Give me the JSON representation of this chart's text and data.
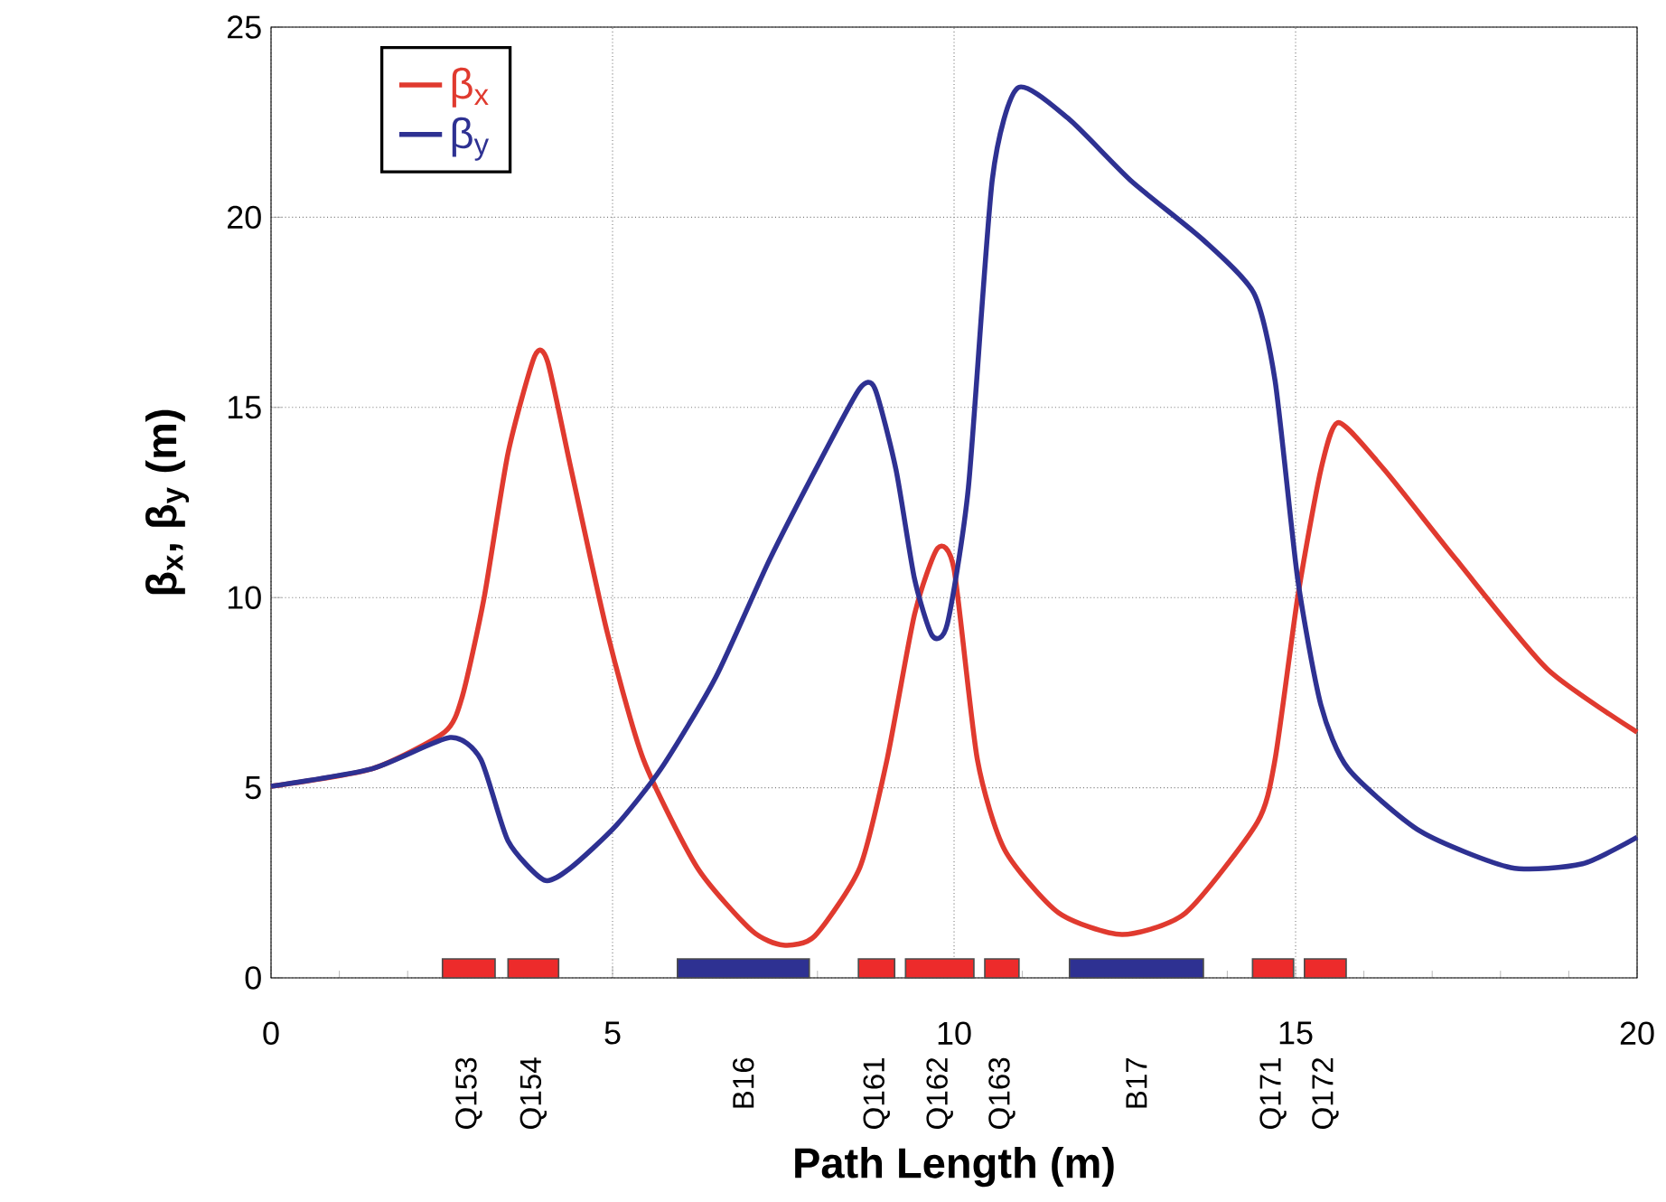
{
  "chart_data": {
    "type": "line",
    "xlabel": "Path Length (m)",
    "ylabel": "β$_{x}$, β$_{y}$ (m)",
    "xlim": [
      0,
      20
    ],
    "ylim": [
      0,
      25
    ],
    "xticks": [
      0,
      5,
      10,
      15,
      20
    ],
    "yticks": [
      0,
      5,
      10,
      15,
      20,
      25
    ],
    "grid": true,
    "legend": "top left",
    "line_style": "solid",
    "marker": "none",
    "series": [
      {
        "name": "β$_{x}$",
        "color": "#e03a2f",
        "x": [
          0,
          1.48,
          2.54,
          2.8,
          3.12,
          3.47,
          3.86,
          4.05,
          4.39,
          4.92,
          5.45,
          6.24,
          7.04,
          7.5,
          7.96,
          8.62,
          9.02,
          9.42,
          9.76,
          10.0,
          10.34,
          10.74,
          11.53,
          12.46,
          13.39,
          14.44,
          14.7,
          15.03,
          15.37,
          15.63,
          16.3,
          17.35,
          18.68,
          20
        ],
        "values": [
          5.04,
          5.5,
          6.46,
          7.4,
          10.0,
          13.8,
          16.35,
          16.2,
          13.4,
          9.1,
          5.75,
          2.9,
          1.24,
          0.86,
          1.1,
          2.9,
          5.75,
          9.55,
          11.3,
          10.74,
          5.75,
          3.37,
          1.71,
          1.14,
          1.71,
          4.09,
          5.75,
          10.0,
          13.36,
          14.6,
          13.36,
          11.0,
          8.13,
          6.46
        ]
      },
      {
        "name": "β$_{y}$",
        "color": "#2e3192",
        "x": [
          0,
          1.48,
          2.62,
          3.07,
          3.47,
          4.0,
          4.39,
          5.05,
          5.71,
          6.51,
          7.3,
          8.1,
          8.62,
          8.84,
          9.15,
          9.42,
          9.68,
          9.9,
          10.21,
          10.56,
          10.93,
          11.67,
          12.59,
          13.65,
          14.39,
          14.7,
          15.03,
          15.37,
          15.77,
          16.83,
          18.15,
          19.2,
          20
        ],
        "values": [
          5.04,
          5.5,
          6.32,
          5.75,
          3.6,
          2.57,
          2.9,
          4.0,
          5.5,
          7.9,
          11.0,
          13.8,
          15.5,
          15.5,
          13.36,
          10.5,
          9.0,
          9.3,
          12.9,
          21.0,
          23.4,
          22.6,
          20.96,
          19.4,
          18.0,
          15.7,
          10.5,
          7.18,
          5.5,
          3.85,
          2.9,
          3.0,
          3.7
        ]
      },
      {
        "type": "area",
        "name": "Q153",
        "color": "#ed2b2b",
        "x": [
          2.51,
          3.28
        ],
        "values": [
          0.5,
          0.5
        ]
      },
      {
        "type": "area",
        "name": "Q154",
        "color": "#ed2b2b",
        "x": [
          3.47,
          4.21
        ],
        "values": [
          0.5,
          0.5
        ]
      },
      {
        "type": "area",
        "name": "B16",
        "color": "#2e3192",
        "x": [
          5.95,
          7.88
        ],
        "values": [
          0.5,
          0.5
        ]
      },
      {
        "type": "area",
        "name": "Q161",
        "color": "#ed2b2b",
        "x": [
          8.6,
          9.13
        ],
        "values": [
          0.5,
          0.5
        ]
      },
      {
        "type": "area",
        "name": "Q162",
        "color": "#ed2b2b",
        "x": [
          9.29,
          10.29
        ],
        "values": [
          0.5,
          0.5
        ]
      },
      {
        "type": "area",
        "name": "Q163",
        "color": "#ed2b2b",
        "x": [
          10.45,
          10.95
        ],
        "values": [
          0.5,
          0.5
        ]
      },
      {
        "type": "area",
        "name": "B17",
        "color": "#2e3192",
        "x": [
          11.69,
          13.65
        ],
        "values": [
          0.5,
          0.5
        ]
      },
      {
        "type": "area",
        "name": "Q171",
        "color": "#ed2b2b",
        "x": [
          14.37,
          14.97
        ],
        "values": [
          0.5,
          0.5
        ]
      },
      {
        "type": "area",
        "name": "Q172",
        "color": "#ed2b2b",
        "x": [
          15.13,
          15.74
        ],
        "values": [
          0.5,
          0.5
        ]
      }
    ]
  }
}
